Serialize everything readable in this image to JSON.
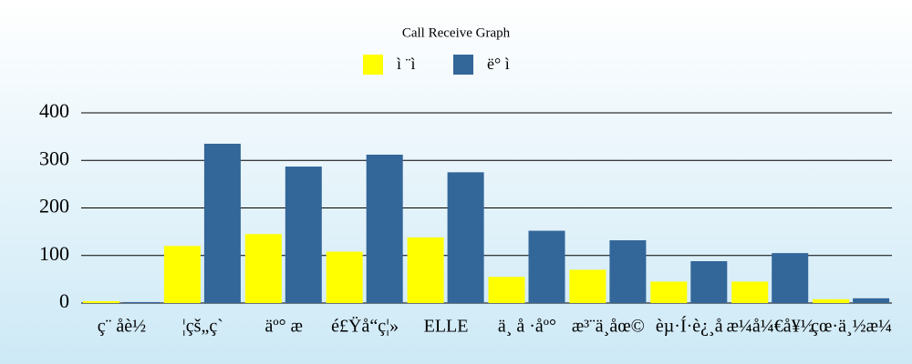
{
  "chart_data": {
    "type": "bar",
    "title": "Call Receive Graph",
    "categories": [
      "ç¨ åè½",
      "¦çš„ç`",
      "äº° æ",
      "é£Ÿå“ç¦»",
      "ELLE",
      "ä¸ å ·åº°",
      "æ³¨ä¸åœ©",
      "èµ·Í·è¿¸å",
      "æ¼å¼€å¥½",
      "çœ·ä¸½æ¼"
    ],
    "series": [
      {
        "name": "ì ¨ì",
        "color": "#ffff00",
        "values": [
          4,
          120,
          145,
          108,
          138,
          55,
          70,
          45,
          45,
          8
        ]
      },
      {
        "name": "ë° ì",
        "color": "#336699",
        "values": [
          2,
          335,
          287,
          312,
          275,
          152,
          132,
          88,
          105,
          10
        ]
      }
    ],
    "ylim": [
      0,
      400
    ],
    "yticks": [
      0,
      100,
      200,
      300,
      400
    ],
    "grid": true
  }
}
